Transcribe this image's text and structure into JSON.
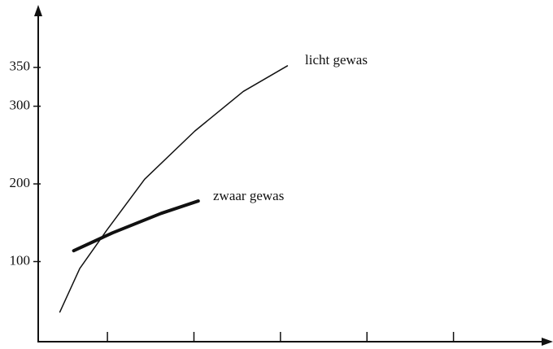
{
  "chart_data": {
    "type": "line",
    "annotations": [
      "licht gewas",
      "zwaar gewas"
    ],
    "series": [
      {
        "name": "licht gewas",
        "color": "#111111",
        "width": 1.5,
        "x": [
          0.45,
          0.68,
          0.99,
          1.43,
          2.01,
          2.57,
          3.08
        ],
        "values": [
          35,
          91,
          140,
          206,
          268,
          319,
          352
        ]
      },
      {
        "name": "zwaar gewas",
        "color": "#111111",
        "width": 4,
        "x": [
          0.61,
          1.06,
          1.62,
          2.05
        ],
        "values": [
          114,
          137,
          162,
          178
        ]
      }
    ],
    "xlim": [
      0.2,
      6
    ],
    "xticks": [
      1,
      2,
      3,
      4,
      5
    ],
    "ylim": [
      0,
      420
    ],
    "yticks": [
      100,
      200,
      300,
      350
    ]
  }
}
